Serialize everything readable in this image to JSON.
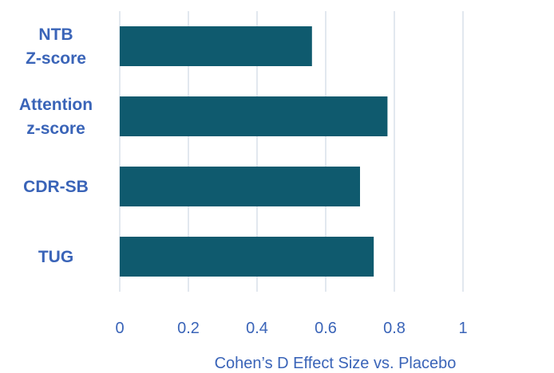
{
  "chart_data": {
    "type": "bar",
    "orientation": "horizontal",
    "categories": [
      [
        "NTB",
        "Z-score"
      ],
      [
        "Attention",
        "z-score"
      ],
      [
        "CDR-SB"
      ],
      [
        "TUG"
      ]
    ],
    "values": [
      0.56,
      0.78,
      0.7,
      0.74
    ],
    "xlabel": "Cohen’s D Effect Size vs. Placebo",
    "ylabel": "",
    "title": "",
    "xlim": [
      0,
      1
    ],
    "xticks": [
      "0",
      "0.2",
      "0.4",
      "0.6",
      "0.8",
      "1"
    ],
    "grid": "vertical",
    "legend": "none",
    "bar_color": "#0f5a6e",
    "label_color": "#3a64b8"
  }
}
